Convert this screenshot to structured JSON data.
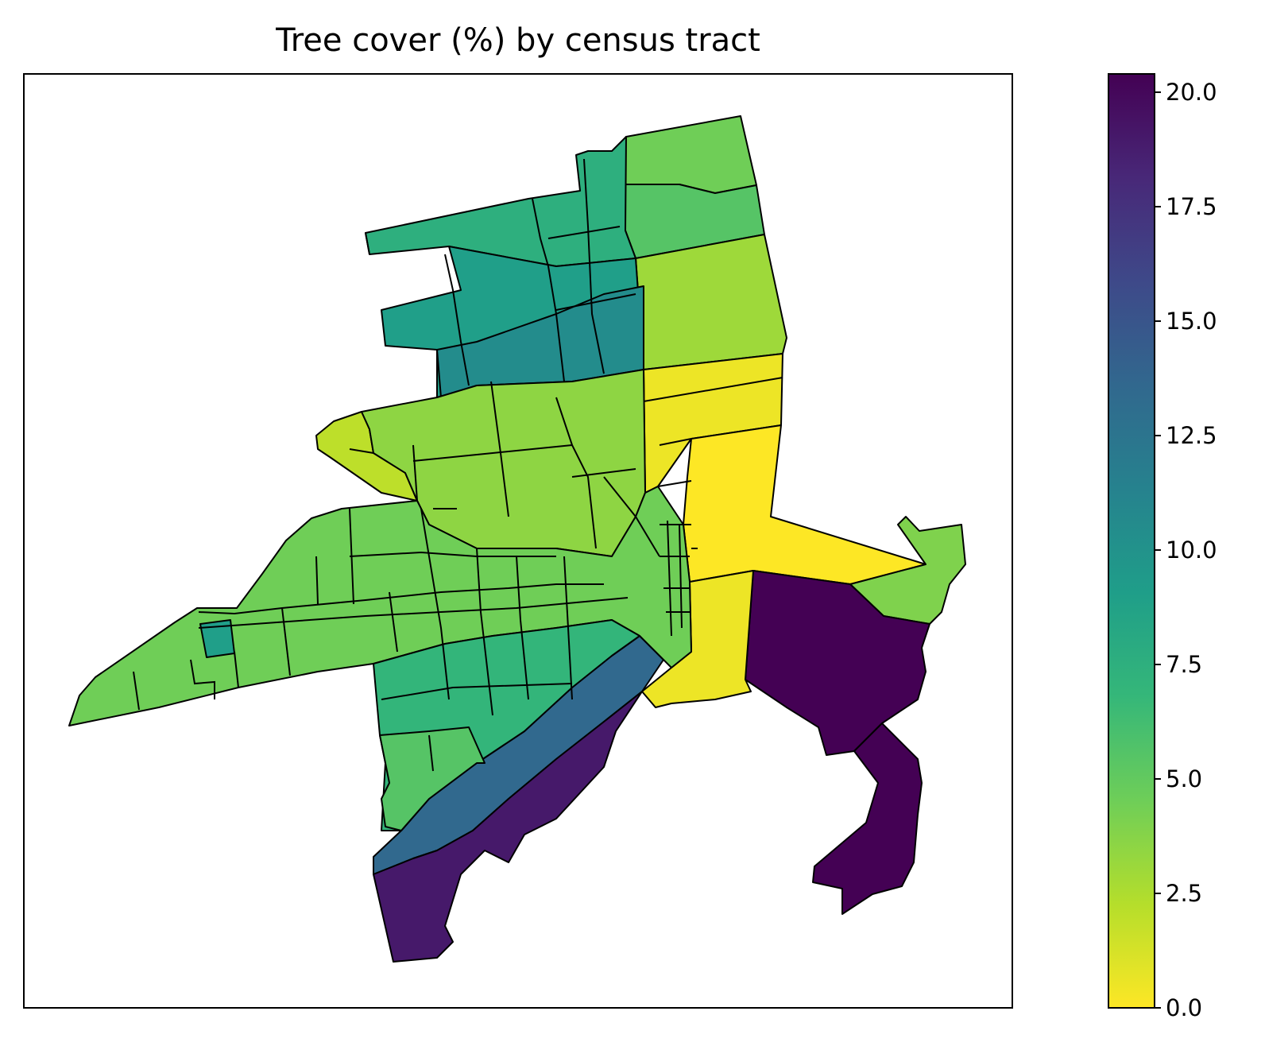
{
  "figure": {
    "title": "Tree cover (%) by census tract"
  },
  "colorbar": {
    "colormap": "viridis_r",
    "vmin": 0.0,
    "vmax": 20.4,
    "ticks": [
      "0.0",
      "2.5",
      "5.0",
      "7.5",
      "10.0",
      "12.5",
      "15.0",
      "17.5",
      "20.0"
    ],
    "color_stops": [
      "#fde725",
      "#b5de2b",
      "#6ece58",
      "#35b779",
      "#1f9e89",
      "#26828e",
      "#31688e",
      "#3e4989",
      "#482878",
      "#440154"
    ]
  },
  "chart_data": {
    "type": "choropleth",
    "title": "Tree cover (%) by census tract",
    "value_range": [
      0.0,
      20.4
    ],
    "tracts": [
      {
        "id": "ne-upper-strip",
        "value": 4.5
      },
      {
        "id": "ne-band-2",
        "value": 5.5
      },
      {
        "id": "ne-large-lime",
        "value": 3.0
      },
      {
        "id": "e-yellow-bands",
        "value": 0.5
      },
      {
        "id": "e-yellow-large",
        "value": 0.0
      },
      {
        "id": "e-green-arm",
        "value": 4.0
      },
      {
        "id": "se-purple-shore",
        "value": 20.4
      },
      {
        "id": "se-purple-hook",
        "value": 20.4
      },
      {
        "id": "s-purple-coast",
        "value": 19.0
      },
      {
        "id": "s-blue-diagonal",
        "value": 13.5
      },
      {
        "id": "central-yellow-south",
        "value": 0.5
      },
      {
        "id": "n-teal-block-1",
        "value": 7.5
      },
      {
        "id": "n-teal-block-2",
        "value": 9.0
      },
      {
        "id": "n-teal-block-3",
        "value": 10.5
      },
      {
        "id": "w-lime-wedge",
        "value": 2.0
      },
      {
        "id": "w-long-arm",
        "value": 4.5
      },
      {
        "id": "w-green-band",
        "value": 3.5
      },
      {
        "id": "sw-green-block",
        "value": 7.0
      },
      {
        "id": "sw-lower-block",
        "value": 5.5
      }
    ]
  }
}
